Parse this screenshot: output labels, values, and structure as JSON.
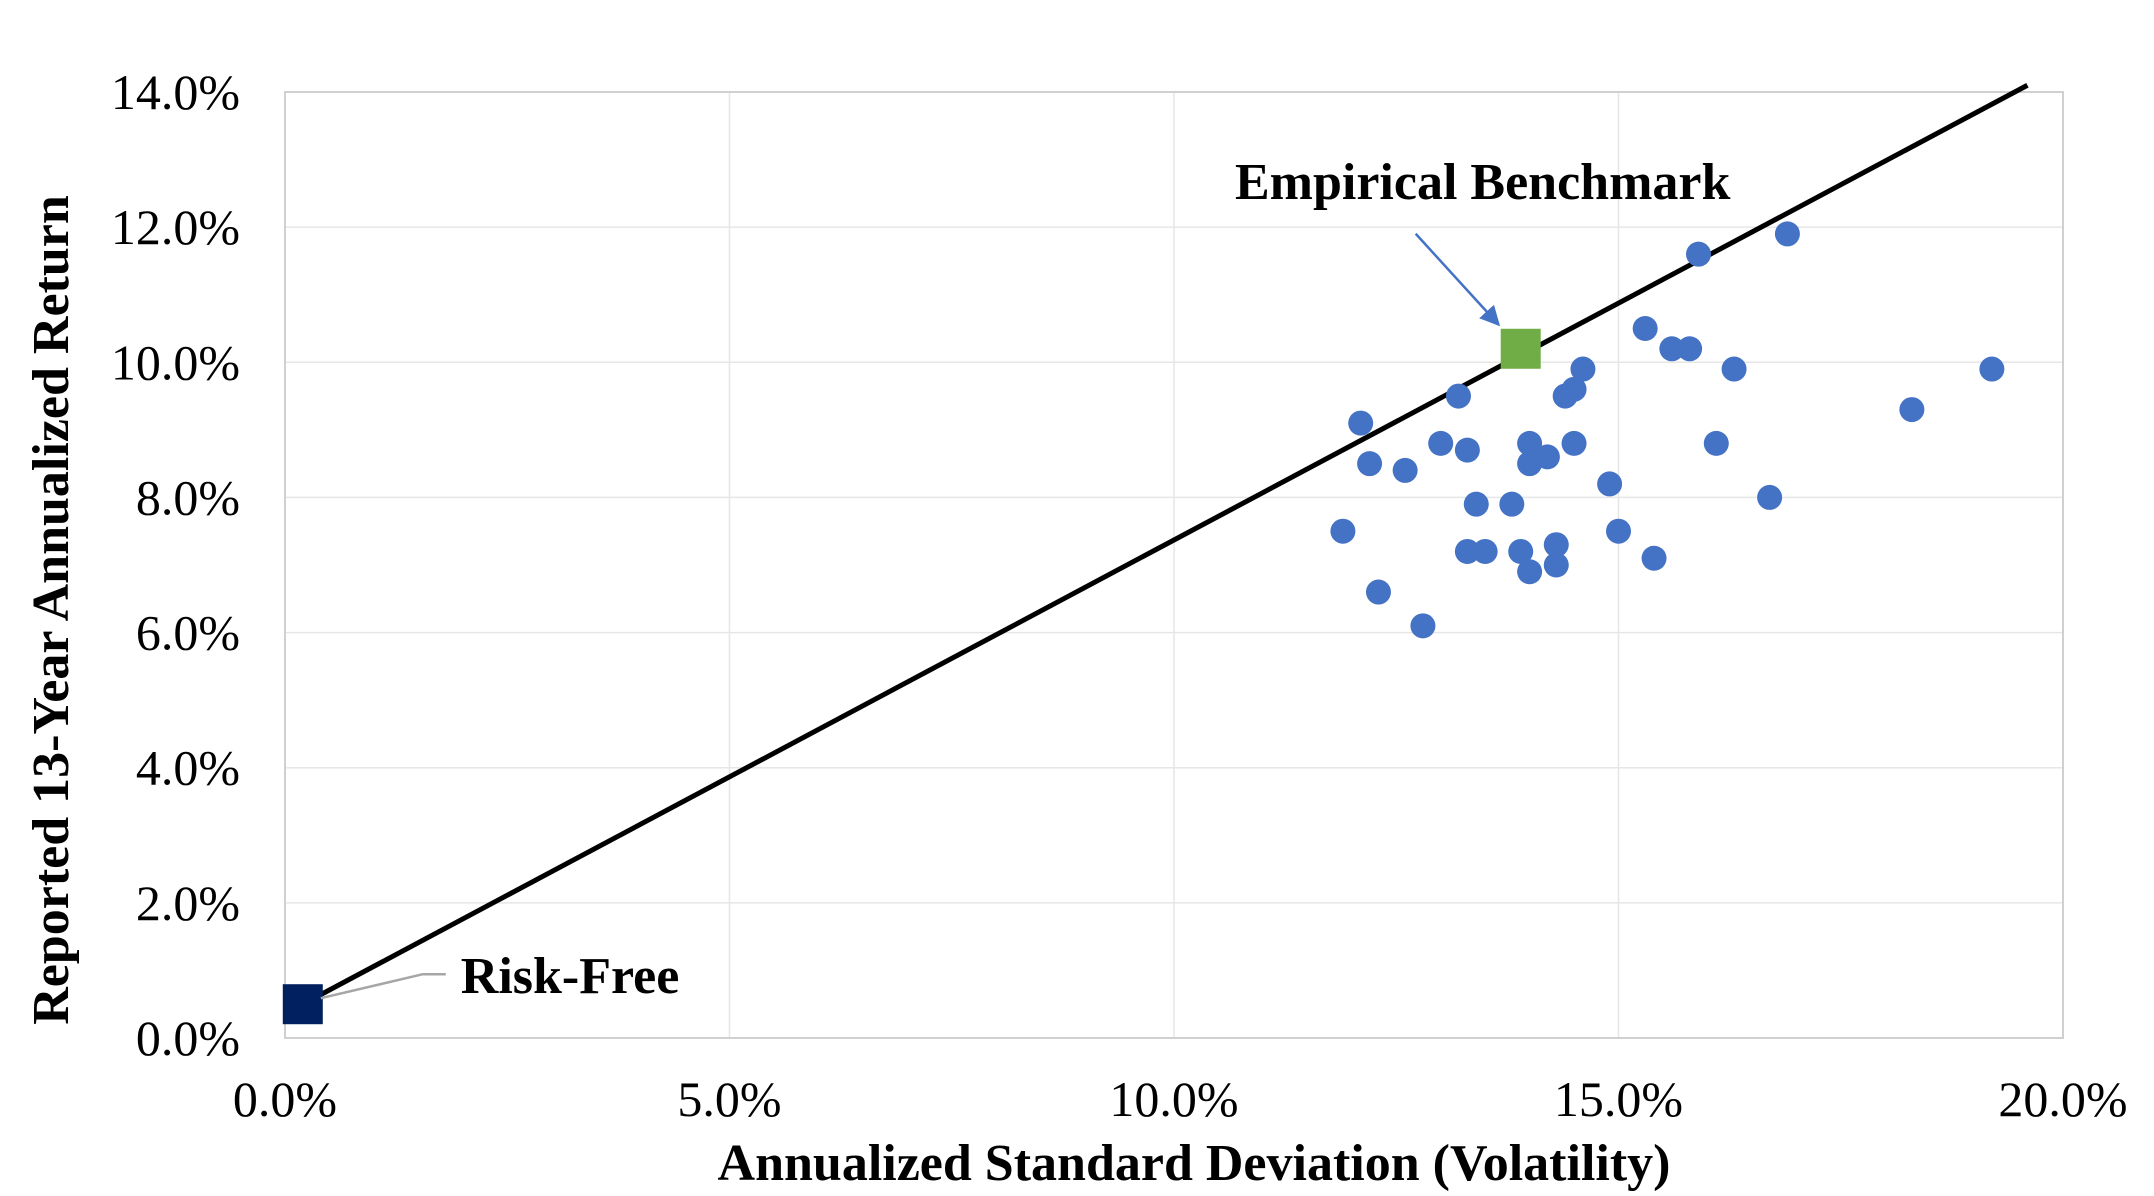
{
  "chart_data": {
    "type": "scatter",
    "title": "",
    "xlabel": "Annualized Standard Deviation (Volatility)",
    "ylabel": "Reported 13-Year Annualized Return",
    "xlim": [
      0,
      20
    ],
    "ylim": [
      0,
      14
    ],
    "x_ticks": [
      0,
      5,
      10,
      15,
      20
    ],
    "y_ticks": [
      0,
      2,
      4,
      6,
      8,
      10,
      12,
      14
    ],
    "x_tick_labels": [
      "0.0%",
      "5.0%",
      "10.0%",
      "15.0%",
      "20.0%"
    ],
    "y_tick_labels": [
      "0.0%",
      "2.0%",
      "4.0%",
      "6.0%",
      "8.0%",
      "10.0%",
      "12.0%",
      "14.0%"
    ],
    "grid": true,
    "legend": "none",
    "series": [
      {
        "marker": "circle",
        "color": "#4472C4",
        "points": [
          {
            "x": 11.9,
            "y": 7.5
          },
          {
            "x": 12.1,
            "y": 9.1
          },
          {
            "x": 12.2,
            "y": 8.5
          },
          {
            "x": 12.3,
            "y": 6.6
          },
          {
            "x": 12.6,
            "y": 8.4
          },
          {
            "x": 12.8,
            "y": 6.1
          },
          {
            "x": 13.0,
            "y": 8.8
          },
          {
            "x": 13.2,
            "y": 9.5
          },
          {
            "x": 13.3,
            "y": 7.2
          },
          {
            "x": 13.3,
            "y": 8.7
          },
          {
            "x": 13.4,
            "y": 7.9
          },
          {
            "x": 13.5,
            "y": 7.2
          },
          {
            "x": 13.8,
            "y": 7.9
          },
          {
            "x": 13.9,
            "y": 7.2
          },
          {
            "x": 14.0,
            "y": 6.9
          },
          {
            "x": 14.0,
            "y": 8.8
          },
          {
            "x": 14.0,
            "y": 8.5
          },
          {
            "x": 14.2,
            "y": 8.6
          },
          {
            "x": 14.3,
            "y": 7.0
          },
          {
            "x": 14.3,
            "y": 7.3
          },
          {
            "x": 14.4,
            "y": 9.5
          },
          {
            "x": 14.5,
            "y": 9.6
          },
          {
            "x": 14.5,
            "y": 8.8
          },
          {
            "x": 14.6,
            "y": 9.9
          },
          {
            "x": 14.9,
            "y": 8.2
          },
          {
            "x": 15.0,
            "y": 7.5
          },
          {
            "x": 15.3,
            "y": 10.5
          },
          {
            "x": 15.4,
            "y": 7.1
          },
          {
            "x": 15.6,
            "y": 10.2
          },
          {
            "x": 15.8,
            "y": 10.2
          },
          {
            "x": 15.9,
            "y": 11.6
          },
          {
            "x": 16.1,
            "y": 8.8
          },
          {
            "x": 16.3,
            "y": 9.9
          },
          {
            "x": 16.7,
            "y": 8.0
          },
          {
            "x": 16.9,
            "y": 11.9
          },
          {
            "x": 18.3,
            "y": 9.3
          },
          {
            "x": 19.2,
            "y": 9.9
          }
        ]
      },
      {
        "name": "Empirical Benchmark",
        "marker": "square",
        "color": "#70AD47",
        "points": [
          {
            "x": 13.9,
            "y": 10.2
          }
        ]
      },
      {
        "name": "Risk-Free",
        "marker": "square",
        "color": "#002060",
        "points": [
          {
            "x": 0.2,
            "y": 0.5
          }
        ]
      }
    ],
    "line": {
      "color": "#000000",
      "points": [
        {
          "x": 0.2,
          "y": 0.5
        },
        {
          "x": 19.6,
          "y": 14.1
        }
      ]
    },
    "annotations": [
      {
        "text": "Empirical Benchmark",
        "target_series": "Empirical Benchmark",
        "arrow_color": "#4472C4"
      },
      {
        "text": "Risk-Free",
        "target_series": "Risk-Free",
        "arrow_color": "#A6A6A6"
      }
    ]
  }
}
